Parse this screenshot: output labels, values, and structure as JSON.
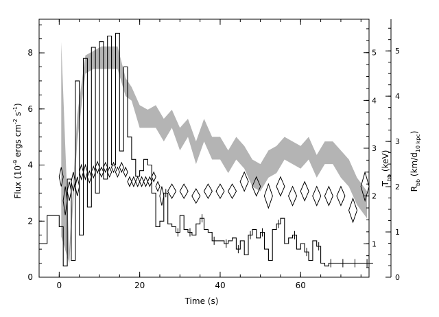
{
  "chart_data": {
    "type": "line",
    "xlabel": "Time (s)",
    "ylabel": "Flux (10",
    "ylabel_exp1": "-9",
    "ylabel_mid": " ergs cm",
    "ylabel_exp2": "-2",
    "ylabel_mid2": " s",
    "ylabel_exp3": "-1",
    "ylabel_end": ")",
    "y2label_main": "T",
    "y2label_sub": "bb",
    "y2label_rest": " (keV)",
    "y3label_main": "R",
    "y3label_sub": "bb",
    "y3label_mid": " (km/d",
    "y3label_sub2": "10 kpc",
    "y3label_end": ")",
    "xlim": [
      -5,
      77
    ],
    "ylim": [
      0,
      9.2
    ],
    "t_axis_lim": [
      0.3,
      5.7
    ],
    "r_axis_lim": [
      0,
      5.7
    ],
    "x_ticks": [
      0,
      20,
      40,
      60
    ],
    "y_ticks": [
      0,
      2,
      4,
      6,
      8
    ],
    "t_ticks": [
      1,
      2,
      3,
      4,
      5
    ],
    "r_ticks": [
      0,
      1,
      2,
      3,
      4,
      5
    ],
    "flux_series": {
      "name": "",
      "t": [
        -5,
        -3,
        -1,
        0,
        1,
        2,
        3,
        4,
        5,
        6,
        7,
        8,
        9,
        10,
        11,
        12,
        13,
        14,
        15,
        16,
        17,
        18,
        19,
        20,
        21,
        22,
        23,
        24,
        25,
        26,
        27,
        28,
        29,
        30,
        31,
        32,
        33,
        34,
        35,
        36,
        37,
        38,
        39,
        40,
        41,
        42,
        43,
        44,
        45,
        46,
        47,
        48,
        49,
        50,
        51,
        52,
        53,
        54,
        55,
        56,
        57,
        58,
        59,
        60,
        61,
        62,
        63,
        64,
        65,
        66,
        67,
        68,
        69,
        70,
        71,
        72,
        73,
        74,
        75,
        76,
        77
      ],
      "flux": [
        1.2,
        2.2,
        2.2,
        1.8,
        0.4,
        3.5,
        0.6,
        7.0,
        1.5,
        7.8,
        2.5,
        8.2,
        3.0,
        8.4,
        3.5,
        8.6,
        4.0,
        8.7,
        4.5,
        7.5,
        5.0,
        4.2,
        3.6,
        3.8,
        4.2,
        4.0,
        3.0,
        1.8,
        2.0,
        3.0,
        1.9,
        1.8,
        1.6,
        2.2,
        1.7,
        1.6,
        1.5,
        1.9,
        2.1,
        1.7,
        1.6,
        1.3,
        1.3,
        1.3,
        1.2,
        1.3,
        1.4,
        1.0,
        1.3,
        0.8,
        1.5,
        1.7,
        1.4,
        1.6,
        1.0,
        0.6,
        1.7,
        1.9,
        2.1,
        1.2,
        1.4,
        1.5,
        1.0,
        1.2,
        0.9,
        0.6,
        1.3,
        1.1,
        0.5,
        0.4,
        0.5,
        0.5,
        0.5,
        0.5,
        0.5,
        0.5,
        0.5,
        0.5,
        0.5,
        0.5,
        0.5
      ],
      "flux_err_ticks_t": [
        26,
        29,
        32,
        35,
        38,
        41,
        44,
        47,
        50,
        54,
        58,
        61,
        64,
        67,
        70,
        73,
        76
      ]
    },
    "temperature_series": {
      "name": "",
      "t": [
        0.5,
        1.5,
        2.5,
        3.5,
        4.5,
        5.5,
        6.5,
        7.5,
        8.5,
        9.5,
        10.5,
        11.5,
        12.5,
        13.5,
        14.5,
        15.5,
        16.5,
        17.5,
        18.5,
        19.5,
        20.5,
        21.5,
        22.5,
        23.5,
        24.5,
        25.5,
        28.0,
        31.0,
        34.0,
        37.0,
        40.0,
        43.0,
        46.0,
        49.0,
        52.0,
        55.0,
        58.0,
        61.0,
        64.0,
        67.0,
        70.0,
        73.0,
        76.0
      ],
      "kT": [
        2.4,
        1.9,
        2.1,
        2.3,
        2.2,
        2.5,
        2.5,
        2.4,
        2.5,
        2.6,
        2.5,
        2.6,
        2.5,
        2.6,
        2.5,
        2.6,
        2.5,
        2.3,
        2.3,
        2.3,
        2.3,
        2.3,
        2.3,
        2.4,
        2.2,
        2.0,
        2.1,
        2.1,
        2.0,
        2.1,
        2.1,
        2.1,
        2.3,
        2.2,
        2.0,
        2.2,
        2.0,
        2.1,
        2.0,
        2.0,
        2.0,
        1.7,
        2.2
      ],
      "kT_err": [
        0.2,
        0.3,
        0.2,
        0.2,
        0.2,
        0.15,
        0.15,
        0.12,
        0.12,
        0.12,
        0.1,
        0.1,
        0.1,
        0.1,
        0.1,
        0.1,
        0.1,
        0.1,
        0.1,
        0.1,
        0.1,
        0.1,
        0.1,
        0.1,
        0.1,
        0.2,
        0.15,
        0.15,
        0.15,
        0.15,
        0.15,
        0.15,
        0.2,
        0.2,
        0.25,
        0.2,
        0.2,
        0.2,
        0.2,
        0.2,
        0.2,
        0.25,
        0.3
      ]
    },
    "radius_band": {
      "name": "",
      "t": [
        0.5,
        2.5,
        4.5,
        6.5,
        8.5,
        10.5,
        12.5,
        14.5,
        16.5,
        18.0,
        20.0,
        22.0,
        24.0,
        26.0,
        28.0,
        30.0,
        32.0,
        34.0,
        36.0,
        38.0,
        40.0,
        42.0,
        44.0,
        46.0,
        48.0,
        50.0,
        52.0,
        54.0,
        56.0,
        58.0,
        60.0,
        62.0,
        64.0,
        66.0,
        68.0,
        70.0,
        72.0,
        74.0,
        76.5
      ],
      "R_low": [
        0.9,
        0.3,
        3.0,
        4.5,
        4.6,
        4.6,
        4.6,
        4.6,
        4.0,
        3.9,
        3.3,
        3.3,
        3.3,
        3.0,
        3.3,
        2.8,
        3.1,
        2.5,
        3.0,
        2.6,
        2.6,
        2.3,
        2.6,
        2.4,
        2.0,
        1.9,
        2.2,
        2.3,
        2.6,
        2.5,
        2.4,
        2.6,
        2.2,
        2.5,
        2.5,
        2.2,
        2.0,
        1.6,
        1.3
      ],
      "R_high": [
        5.2,
        0.6,
        3.6,
        4.9,
        5.0,
        5.1,
        5.1,
        5.1,
        4.4,
        4.2,
        3.8,
        3.7,
        3.8,
        3.5,
        3.7,
        3.3,
        3.5,
        3.0,
        3.5,
        3.1,
        3.1,
        2.8,
        3.1,
        2.9,
        2.6,
        2.5,
        2.8,
        2.9,
        3.1,
        3.0,
        2.9,
        3.1,
        2.7,
        3.0,
        3.0,
        2.8,
        2.6,
        2.2,
        1.9
      ]
    }
  }
}
